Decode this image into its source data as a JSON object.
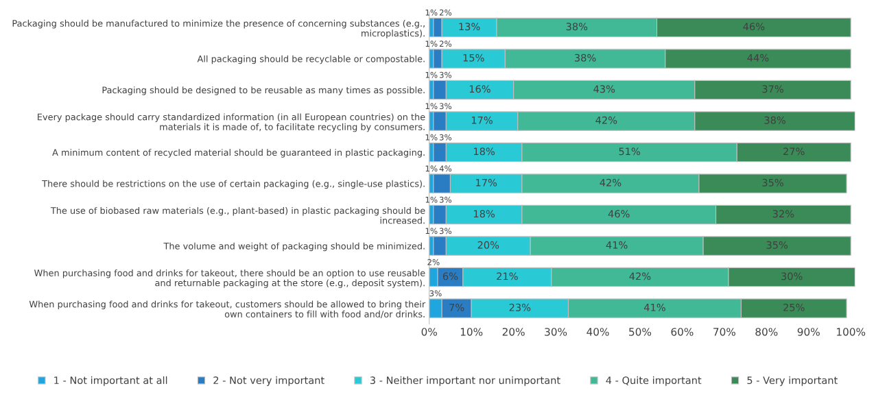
{
  "chart_data": {
    "type": "bar",
    "orientation": "horizontal",
    "stacked": true,
    "categories": [
      "Packaging should be manufactured to minimize the presence of concerning substances (e.g.,\nmicroplastics).",
      "All packaging should be recyclable or compostable.",
      "Packaging should be designed to be reusable as many times as possible.",
      "Every package should carry standardized information (in all European countries) on the\nmaterials it is made of, to facilitate recycling by consumers.",
      "A minimum content of recycled material should be guaranteed in plastic packaging.",
      "There should be restrictions on the use of certain packaging (e.g., single-use plastics).",
      "The use of biobased raw materials (e.g., plant-based) in plastic packaging should be\nincreased.",
      "The volume and weight of packaging should be minimized.",
      "When purchasing food and drinks for takeout, there should be an option to use reusable\nand returnable packaging at the store (e.g., deposit system).",
      "When purchasing food and drinks for takeout, customers should be allowed to bring their\nown containers to fill with food and/or drinks."
    ],
    "series": [
      {
        "name": "1 - Not important at all",
        "color": "#1fa6df",
        "values": [
          1,
          1,
          1,
          1,
          1,
          1,
          1,
          1,
          2,
          3
        ],
        "value_labels": [
          "1%",
          "1%",
          "1%",
          "1%",
          "1%",
          "1%",
          "1%",
          "1%",
          "2%",
          "3%"
        ]
      },
      {
        "name": "2 - Not very important",
        "color": "#2a7dc3",
        "values": [
          2,
          2,
          3,
          3,
          3,
          4,
          3,
          3,
          6,
          7
        ],
        "value_labels": [
          "2%",
          "2%",
          "3%",
          "3%",
          "3%",
          "4%",
          "3%",
          "3%",
          "6%",
          "7%"
        ]
      },
      {
        "name": "3 - Neither important nor unimportant",
        "color": "#29cad6",
        "values": [
          13,
          15,
          16,
          17,
          18,
          17,
          18,
          20,
          21,
          23
        ],
        "value_labels": [
          "13%",
          "15%",
          "16%",
          "17%",
          "18%",
          "17%",
          "18%",
          "20%",
          "21%",
          "23%"
        ]
      },
      {
        "name": "4 - Quite important",
        "color": "#41b896",
        "values": [
          38,
          38,
          43,
          42,
          51,
          42,
          46,
          41,
          42,
          41
        ],
        "value_labels": [
          "38%",
          "38%",
          "43%",
          "42%",
          "51%",
          "42%",
          "46%",
          "41%",
          "42%",
          "41%"
        ]
      },
      {
        "name": "5 - Very important",
        "color": "#3a8b57",
        "values": [
          46,
          44,
          37,
          38,
          27,
          35,
          32,
          35,
          30,
          25
        ],
        "value_labels": [
          "46%",
          "44%",
          "37%",
          "38%",
          "27%",
          "35%",
          "32%",
          "35%",
          "30%",
          "25%"
        ]
      }
    ],
    "xlim": [
      0,
      101
    ],
    "xticks": [
      {
        "value": 0,
        "label": "0%"
      },
      {
        "value": 10,
        "label": "10%"
      },
      {
        "value": 20,
        "label": "20%"
      },
      {
        "value": 30,
        "label": "30%"
      },
      {
        "value": 40,
        "label": "40%"
      },
      {
        "value": 50,
        "label": "50%"
      },
      {
        "value": 60,
        "label": "60%"
      },
      {
        "value": 70,
        "label": "70%"
      },
      {
        "value": 80,
        "label": "80%"
      },
      {
        "value": 90,
        "label": "90%"
      },
      {
        "value": 100,
        "label": "100%"
      }
    ],
    "grid": false,
    "legend": "bottom"
  }
}
